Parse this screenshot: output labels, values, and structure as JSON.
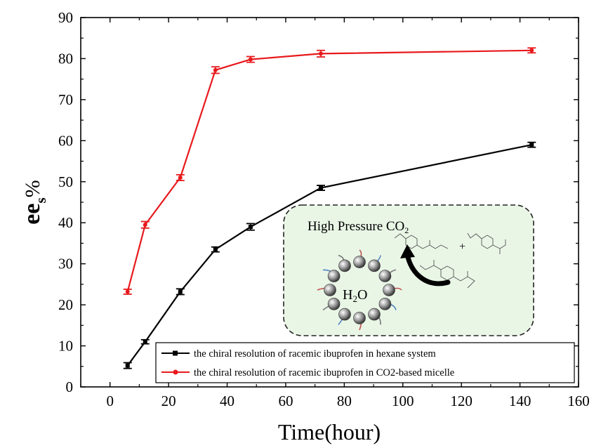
{
  "chart_data": {
    "type": "line",
    "title": "",
    "xlabel": "Time(hour)",
    "ylabel_main": "ee",
    "ylabel_sub": "s",
    "ylabel_suffix": "%",
    "xlim": [
      -10,
      160
    ],
    "ylim": [
      0,
      90
    ],
    "xticks": [
      0,
      20,
      40,
      60,
      80,
      100,
      120,
      140,
      160
    ],
    "yticks": [
      0,
      10,
      20,
      30,
      40,
      50,
      60,
      70,
      80,
      90
    ],
    "grid": false,
    "legend_position": "bottom-right",
    "series": [
      {
        "name": "the chiral resolution of racemic ibuprofen in hexane system",
        "color": "#000000",
        "marker": "square",
        "x": [
          6,
          12,
          24,
          36,
          48,
          72,
          144
        ],
        "y": [
          5.2,
          11,
          23.2,
          33.5,
          39,
          48.5,
          59
        ],
        "err": [
          0.7,
          0.5,
          0.7,
          0.6,
          0.8,
          0.6,
          0.6
        ]
      },
      {
        "name": "the chiral resolution of racemic ibuprofen in CO2-based micelle",
        "color": "#e8191c",
        "marker": "circle",
        "x": [
          6,
          12,
          24,
          36,
          48,
          72,
          144
        ],
        "y": [
          23.2,
          39.5,
          51,
          77.2,
          79.8,
          81.2,
          82
        ],
        "err": [
          0.6,
          0.8,
          0.7,
          0.8,
          0.7,
          0.8,
          0.6
        ]
      }
    ],
    "inset": {
      "title": "High Pressure CO",
      "title_sub": "2",
      "center_label": "H",
      "center_label_sub": "2",
      "center_label_suffix": "O",
      "plus_sign": "+",
      "background": "#e9f6e6"
    }
  }
}
